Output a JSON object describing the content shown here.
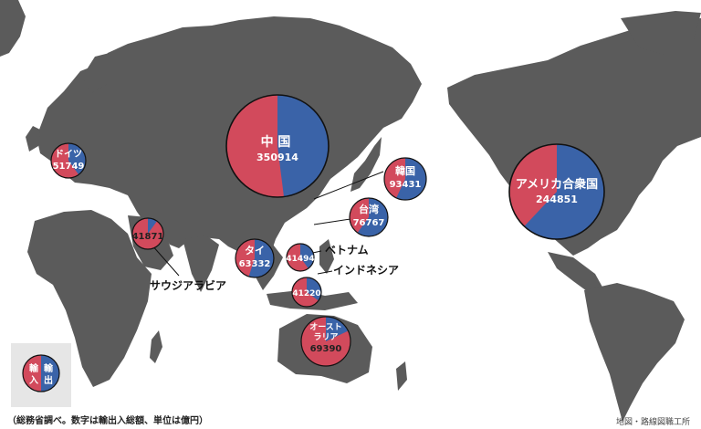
{
  "footer": {
    "note": "（総務省調べ。数字は輸出入総額、単位は億円）",
    "credit": "地図・路線図職工所"
  },
  "legend": {
    "import_top": "輸",
    "import_bottom": "入",
    "export_top": "輸",
    "export_bottom": "出",
    "colors": {
      "import": "#d24a5c",
      "export": "#3a63a8"
    }
  },
  "countries": [
    {
      "id": "china",
      "name": "中 国",
      "value": "350914",
      "export_share": 0.48
    },
    {
      "id": "usa",
      "name": "アメリカ合衆国",
      "value": "244851",
      "export_share": 0.62
    },
    {
      "id": "korea",
      "name": "韓国",
      "value": "93431",
      "export_share": 0.57
    },
    {
      "id": "taiwan",
      "name": "台湾",
      "value": "76767",
      "export_share": 0.6
    },
    {
      "id": "thailand",
      "name": "タイ",
      "value": "63332",
      "export_share": 0.55
    },
    {
      "id": "germany",
      "name": "ドイツ",
      "value": "51749",
      "export_share": 0.4
    },
    {
      "id": "vietnam",
      "name": "ベトナム",
      "value": "41494",
      "export_share": 0.4
    },
    {
      "id": "indonesia",
      "name": "インドネシア",
      "value": "41220",
      "export_share": 0.35
    },
    {
      "id": "saudi",
      "name": "サウジアラビア",
      "value": "41871",
      "export_share": 0.1
    },
    {
      "id": "australia",
      "name": "オースト\nラリア",
      "name_line1": "オースト",
      "name_line2": "ラリア",
      "value": "69390",
      "export_share": 0.18
    }
  ]
}
